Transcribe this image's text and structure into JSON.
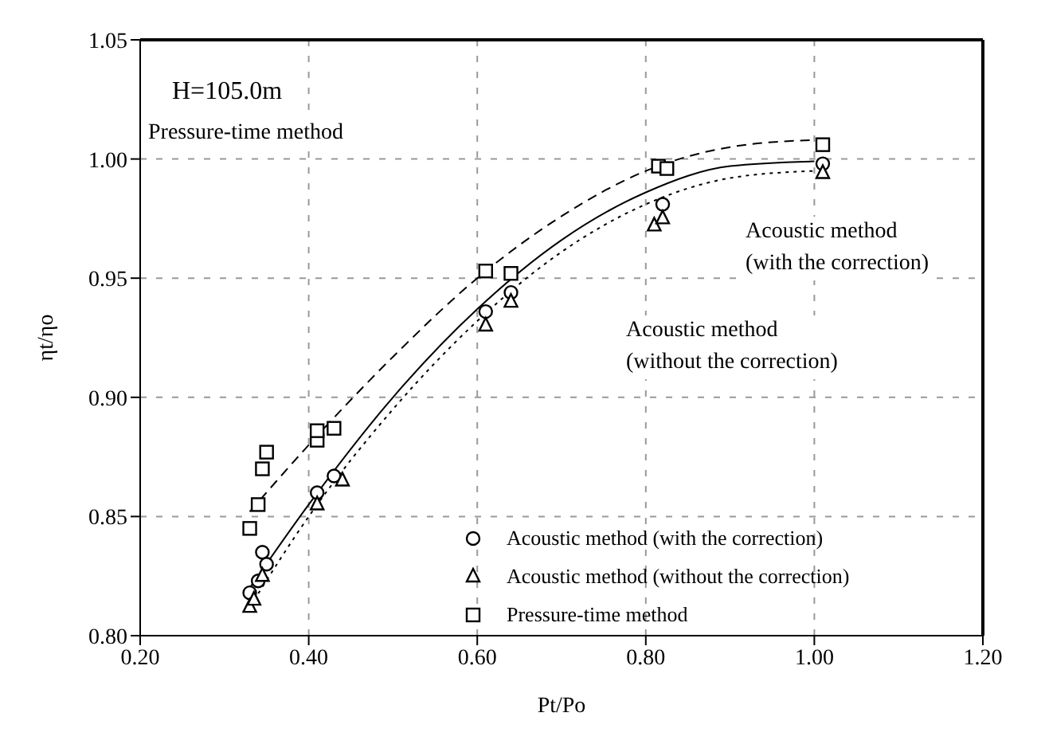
{
  "chart_data": {
    "type": "scatter",
    "xlabel": "Pt/Po",
    "ylabel": "ηt/ηo",
    "xlim": [
      0.2,
      1.2
    ],
    "xticks": [
      {
        "value": 0.2,
        "label": "0.20"
      },
      {
        "value": 0.4,
        "label": "0.40"
      },
      {
        "value": 0.6,
        "label": "0.60"
      },
      {
        "value": 0.8,
        "label": "0.80"
      },
      {
        "value": 1.0,
        "label": "1.00"
      },
      {
        "value": 1.2,
        "label": "1.20"
      }
    ],
    "ylim": [
      0.8,
      1.05
    ],
    "yticks": [
      {
        "value": 0.8,
        "label": "0.80"
      },
      0.85,
      {
        "value": 0.9,
        "label": "0.90"
      },
      0.95,
      {
        "value": 1.0,
        "label": "1.00"
      },
      1.05
    ],
    "grid": true,
    "legend": "bottom right",
    "annotations": [
      "H=105.0m",
      "Pressure-time method",
      "Acoustic method\n(with the correction)",
      "Acoustic method\n(without the correction)"
    ],
    "series": [
      {
        "name": "Acoustic method (with the correction)",
        "marker": "circle",
        "color": "#000000",
        "x": [
          0.33,
          0.34,
          0.345,
          0.35,
          0.41,
          0.43,
          0.61,
          0.64,
          0.82,
          1.01
        ],
        "values": [
          0.818,
          0.823,
          0.835,
          0.83,
          0.86,
          0.867,
          0.936,
          0.944,
          0.981,
          0.998
        ]
      },
      {
        "name": "Acoustic method (without the correction)",
        "marker": "triangle",
        "color": "#000000",
        "x": [
          0.33,
          0.335,
          0.345,
          0.41,
          0.44,
          0.61,
          0.64,
          0.81,
          0.82,
          1.01
        ],
        "values": [
          0.812,
          0.815,
          0.825,
          0.855,
          0.865,
          0.93,
          0.94,
          0.972,
          0.975,
          0.994
        ]
      },
      {
        "name": "Pressure-time method",
        "marker": "square",
        "color": "#000000",
        "x": [
          0.33,
          0.34,
          0.345,
          0.35,
          0.41,
          0.41,
          0.43,
          0.61,
          0.64,
          0.815,
          0.825,
          1.01
        ],
        "values": [
          0.845,
          0.855,
          0.87,
          0.877,
          0.882,
          0.886,
          0.887,
          0.953,
          0.952,
          0.997,
          0.996,
          1.006
        ]
      },
      {
        "type": "line",
        "line_style": "dashed",
        "marker": "none",
        "color": "#000000",
        "x": [
          0.33,
          0.4,
          0.5,
          0.6,
          0.7,
          0.8,
          0.9,
          1.0
        ],
        "values": [
          0.852,
          0.88,
          0.917,
          0.95,
          0.976,
          0.995,
          1.005,
          1.008
        ]
      },
      {
        "type": "line",
        "line_style": "solid",
        "marker": "none",
        "color": "#000000",
        "x": [
          0.33,
          0.4,
          0.5,
          0.6,
          0.7,
          0.8,
          0.9,
          1.0
        ],
        "values": [
          0.82,
          0.855,
          0.9,
          0.937,
          0.966,
          0.986,
          0.997,
          0.999
        ]
      },
      {
        "type": "line",
        "line_style": "dotted",
        "marker": "none",
        "color": "#000000",
        "x": [
          0.33,
          0.4,
          0.5,
          0.6,
          0.7,
          0.8,
          0.9,
          1.0
        ],
        "values": [
          0.812,
          0.85,
          0.895,
          0.932,
          0.961,
          0.981,
          0.992,
          0.995
        ]
      }
    ]
  }
}
